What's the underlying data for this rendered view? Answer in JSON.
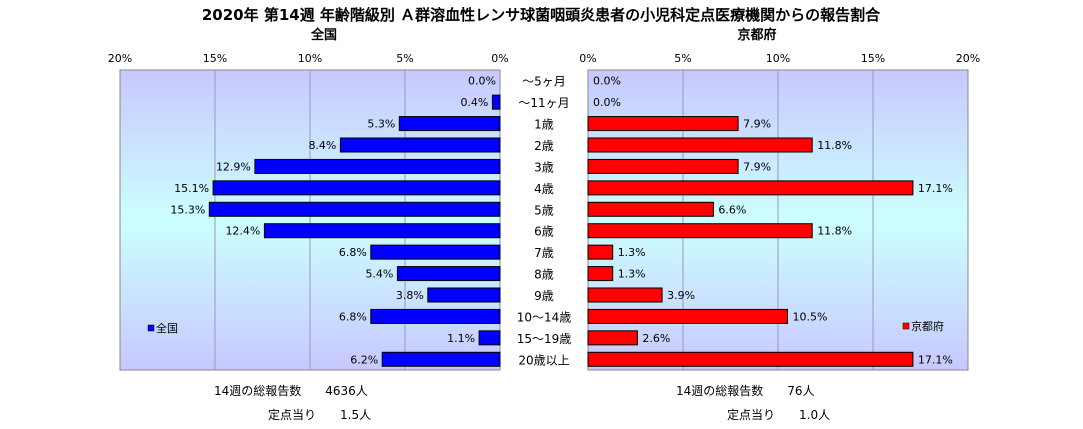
{
  "title": "2020年 第14週 年齢階級別 Ａ群溶血性レンサ球菌咽頭炎患者の小児科定点医療機関からの報告割合",
  "chart_data": [
    {
      "type": "bar",
      "orientation": "horizontal",
      "direction": "right-to-left",
      "title": "全国",
      "xlim": [
        0,
        20
      ],
      "x_ticks": [
        "20%",
        "15%",
        "10%",
        "5%",
        "0%"
      ],
      "grid": true,
      "legend": {
        "position": "bottom-left",
        "entries": [
          "全国"
        ]
      },
      "categories": [
        "～5ヶ月",
        "～11ヶ月",
        "1歳",
        "2歳",
        "3歳",
        "4歳",
        "5歳",
        "6歳",
        "7歳",
        "8歳",
        "9歳",
        "10～14歳",
        "15～19歳",
        "20歳以上"
      ],
      "series": [
        {
          "name": "全国",
          "color": "#0000ff",
          "values": [
            0.0,
            0.4,
            5.3,
            8.4,
            12.9,
            15.1,
            15.3,
            12.4,
            6.8,
            5.4,
            3.8,
            6.8,
            1.1,
            6.2
          ],
          "labels": [
            "0.0%",
            "0.4%",
            "5.3%",
            "8.4%",
            "12.9%",
            "15.1%",
            "15.3%",
            "12.4%",
            "6.8%",
            "5.4%",
            "3.8%",
            "6.8%",
            "1.1%",
            "6.2%"
          ]
        }
      ]
    },
    {
      "type": "bar",
      "orientation": "horizontal",
      "direction": "left-to-right",
      "title": "京都府",
      "xlim": [
        0,
        20
      ],
      "x_ticks": [
        "0%",
        "5%",
        "10%",
        "15%",
        "20%"
      ],
      "grid": true,
      "legend": {
        "position": "bottom-right",
        "entries": [
          "京都府"
        ]
      },
      "categories": [
        "～5ヶ月",
        "～11ヶ月",
        "1歳",
        "2歳",
        "3歳",
        "4歳",
        "5歳",
        "6歳",
        "7歳",
        "8歳",
        "9歳",
        "10～14歳",
        "15～19歳",
        "20歳以上"
      ],
      "series": [
        {
          "name": "京都府",
          "color": "#ff0000",
          "values": [
            0.0,
            0.0,
            7.9,
            11.8,
            7.9,
            17.1,
            6.6,
            11.8,
            1.3,
            1.3,
            3.9,
            10.5,
            2.6,
            17.1
          ],
          "labels": [
            "0.0%",
            "0.0%",
            "7.9%",
            "11.8%",
            "7.9%",
            "17.1%",
            "6.6%",
            "11.8%",
            "1.3%",
            "1.3%",
            "3.9%",
            "10.5%",
            "2.6%",
            "17.1%"
          ]
        }
      ]
    }
  ],
  "footer": {
    "national": {
      "total": "14週の総報告数　　4636人",
      "per_site": "定点当り　　1.5人"
    },
    "kyoto": {
      "total": "14週の総報告数　　76人",
      "per_site": "定点当り　　1.0人"
    }
  },
  "colors": {
    "plot_bg_top": "#c8c8ff",
    "plot_bg_mid": "#ccffff",
    "plot_bg_bottom": "#c8c8ff",
    "national_bar": "#0000ff",
    "kyoto_bar": "#ff0000"
  }
}
